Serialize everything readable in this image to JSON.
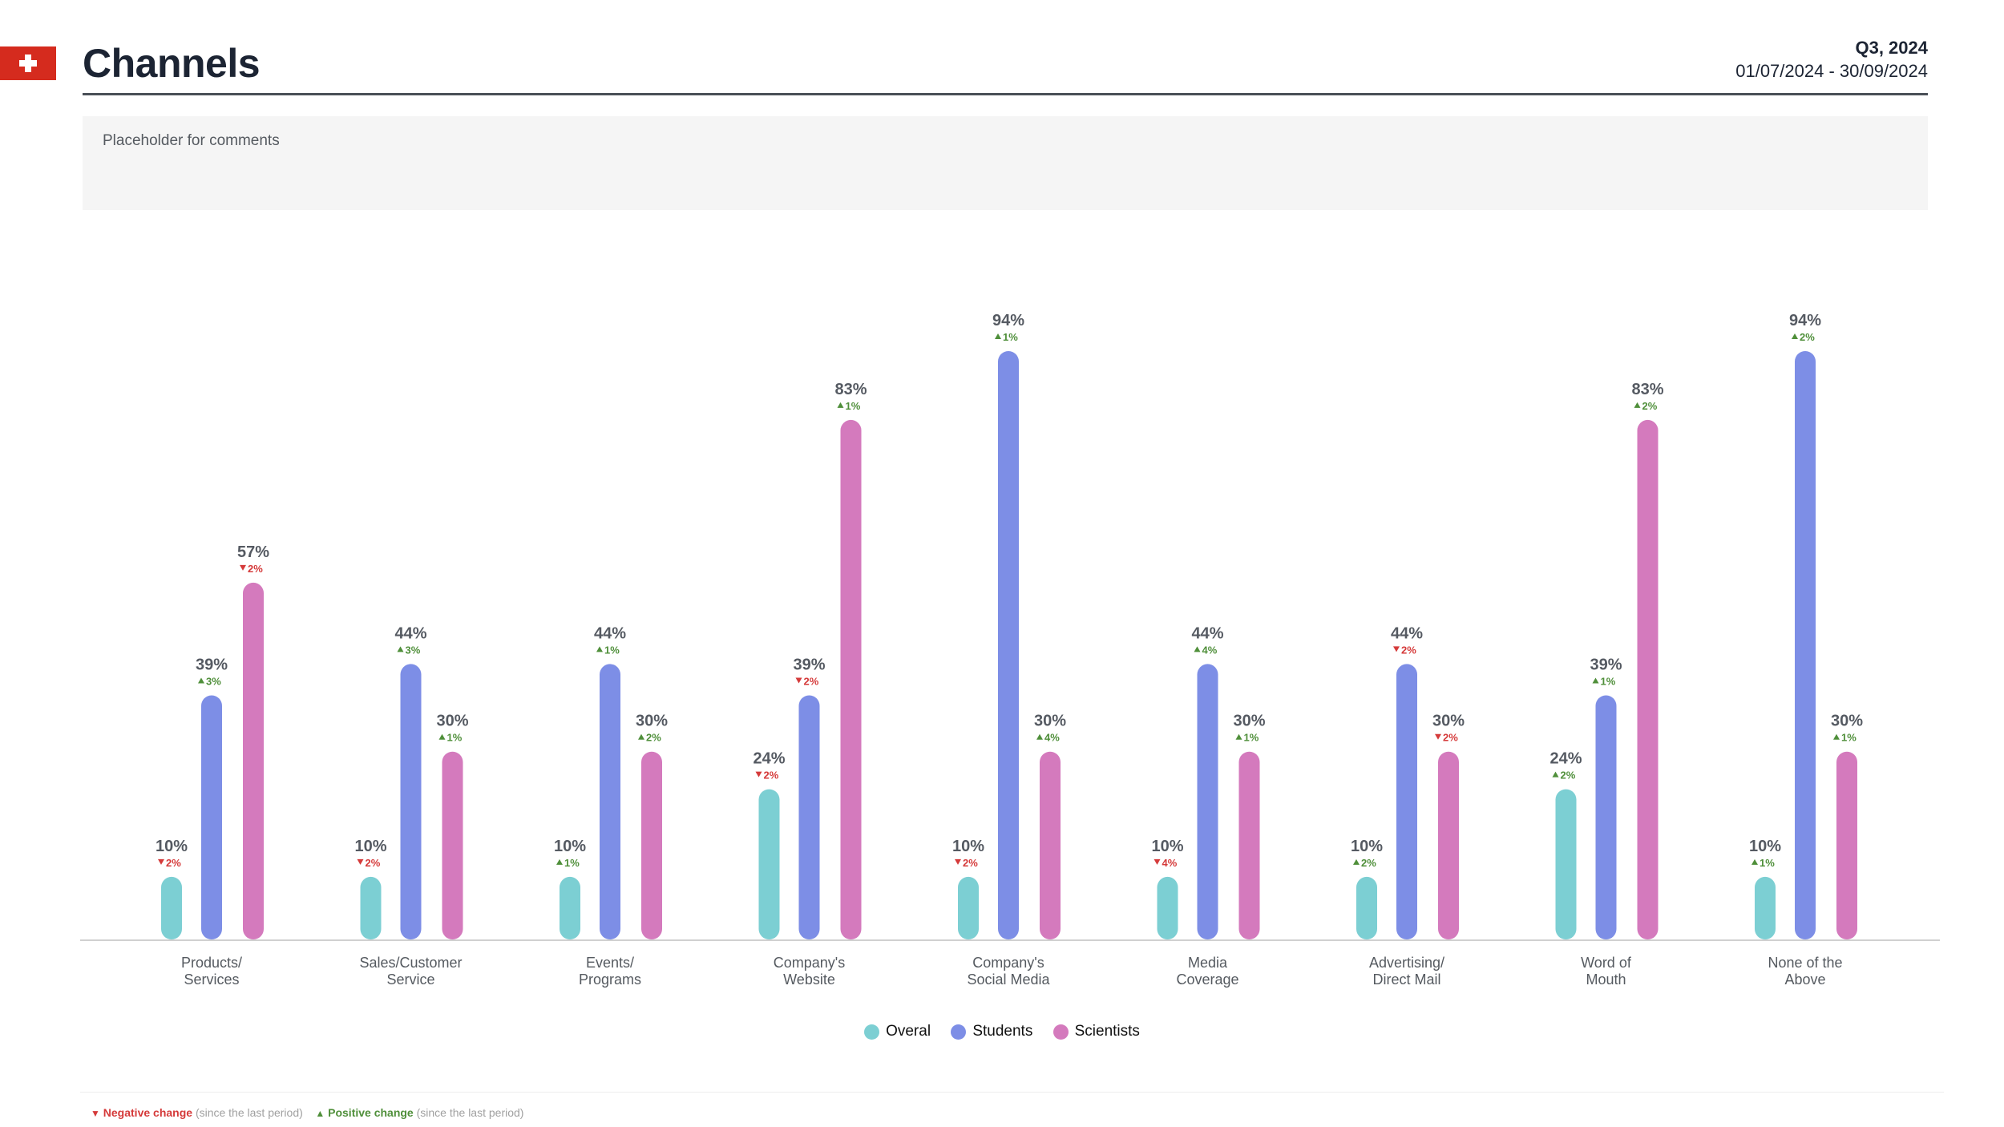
{
  "header": {
    "title": "Channels",
    "quarter": "Q3, 2024",
    "date_range": "01/07/2024 - 30/09/2024"
  },
  "comments": {
    "placeholder": "Placeholder for comments"
  },
  "colors": {
    "overal": "#7ccfd3",
    "students": "#7d8ee6",
    "scientists": "#d47abd",
    "negative": "#d53a3a",
    "positive": "#4f8f3a",
    "flag": "#d52b1e"
  },
  "chart_data": {
    "type": "bar",
    "categories": [
      [
        "Products/",
        "Services"
      ],
      [
        "Sales/Customer",
        "Service"
      ],
      [
        "Events/",
        "Programs"
      ],
      [
        "Company's",
        "Website"
      ],
      [
        "Company's",
        "Social Media"
      ],
      [
        "Media",
        "Coverage"
      ],
      [
        "Advertising/",
        "Direct Mail"
      ],
      [
        "Word of",
        "Mouth"
      ],
      [
        "None of the",
        "Above"
      ]
    ],
    "ylim": [
      0,
      100
    ],
    "series": [
      {
        "name": "Overal",
        "values": [
          10,
          10,
          10,
          24,
          10,
          10,
          10,
          24,
          10
        ],
        "value_labels": [
          "10%",
          "10%",
          "10%",
          "24%",
          "10%",
          "10%",
          "10%",
          "24%",
          "10%"
        ],
        "changes": [
          {
            "dir": "down",
            "label": "2%"
          },
          {
            "dir": "down",
            "label": "2%"
          },
          {
            "dir": "up",
            "label": "1%"
          },
          {
            "dir": "down",
            "label": "2%"
          },
          {
            "dir": "down",
            "label": "2%"
          },
          {
            "dir": "down",
            "label": "4%"
          },
          {
            "dir": "up",
            "label": "2%"
          },
          {
            "dir": "up",
            "label": "2%"
          },
          {
            "dir": "up",
            "label": "1%"
          }
        ]
      },
      {
        "name": "Students",
        "values": [
          39,
          44,
          44,
          39,
          94,
          44,
          44,
          39,
          94
        ],
        "value_labels": [
          "39%",
          "44%",
          "44%",
          "39%",
          "94%",
          "44%",
          "44%",
          "39%",
          "94%"
        ],
        "changes": [
          {
            "dir": "up",
            "label": "3%"
          },
          {
            "dir": "up",
            "label": "3%"
          },
          {
            "dir": "up",
            "label": "1%"
          },
          {
            "dir": "down",
            "label": "2%"
          },
          {
            "dir": "up",
            "label": "1%"
          },
          {
            "dir": "up",
            "label": "4%"
          },
          {
            "dir": "down",
            "label": "2%"
          },
          {
            "dir": "up",
            "label": "1%"
          },
          {
            "dir": "up",
            "label": "2%"
          }
        ]
      },
      {
        "name": "Scientists",
        "values": [
          57,
          30,
          30,
          83,
          30,
          30,
          30,
          83,
          30
        ],
        "value_labels": [
          "57%",
          "30%",
          "30%",
          "83%",
          "30%",
          "30%",
          "30%",
          "83%",
          "30%"
        ],
        "changes": [
          {
            "dir": "down",
            "label": "2%"
          },
          {
            "dir": "up",
            "label": "1%"
          },
          {
            "dir": "up",
            "label": "2%"
          },
          {
            "dir": "up",
            "label": "1%"
          },
          {
            "dir": "up",
            "label": "4%"
          },
          {
            "dir": "up",
            "label": "1%"
          },
          {
            "dir": "down",
            "label": "2%"
          },
          {
            "dir": "up",
            "label": "2%"
          },
          {
            "dir": "up",
            "label": "1%"
          }
        ]
      }
    ],
    "legend": [
      "Overal",
      "Students",
      "Scientists"
    ],
    "legend_position": "bottom-center",
    "grid": false
  },
  "footer": {
    "negative_label": "Negative change",
    "positive_label": "Positive change",
    "since_text": "(since the last period)"
  }
}
